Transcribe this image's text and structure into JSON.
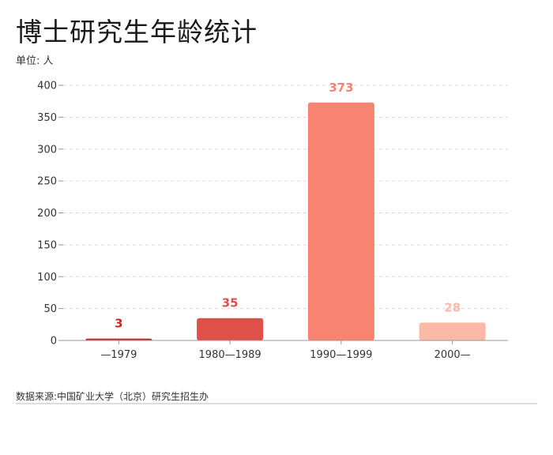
{
  "header": {
    "title": "博士研究生年龄统计",
    "unit": "单位: 人"
  },
  "footer": {
    "source": "数据来源:中国矿业大学（北京）研究生招生办"
  },
  "chart_data": {
    "type": "bar",
    "title": "博士研究生年龄统计",
    "ylabel": "单位: 人",
    "xlabel": "",
    "categories": [
      "—1979",
      "1980—1989",
      "1990—1999",
      "2000—"
    ],
    "values": [
      3,
      35,
      373,
      28
    ],
    "colors": [
      "#c62828",
      "#e0504a",
      "#f88370",
      "#fcb9a8"
    ],
    "label_colors": [
      "#c62828",
      "#e0504a",
      "#f88370",
      "#fcb9a8"
    ],
    "ylim": [
      0,
      400
    ],
    "yticks": [
      0,
      50,
      100,
      150,
      200,
      250,
      300,
      350,
      400
    ],
    "grid": true,
    "legend": "none"
  }
}
